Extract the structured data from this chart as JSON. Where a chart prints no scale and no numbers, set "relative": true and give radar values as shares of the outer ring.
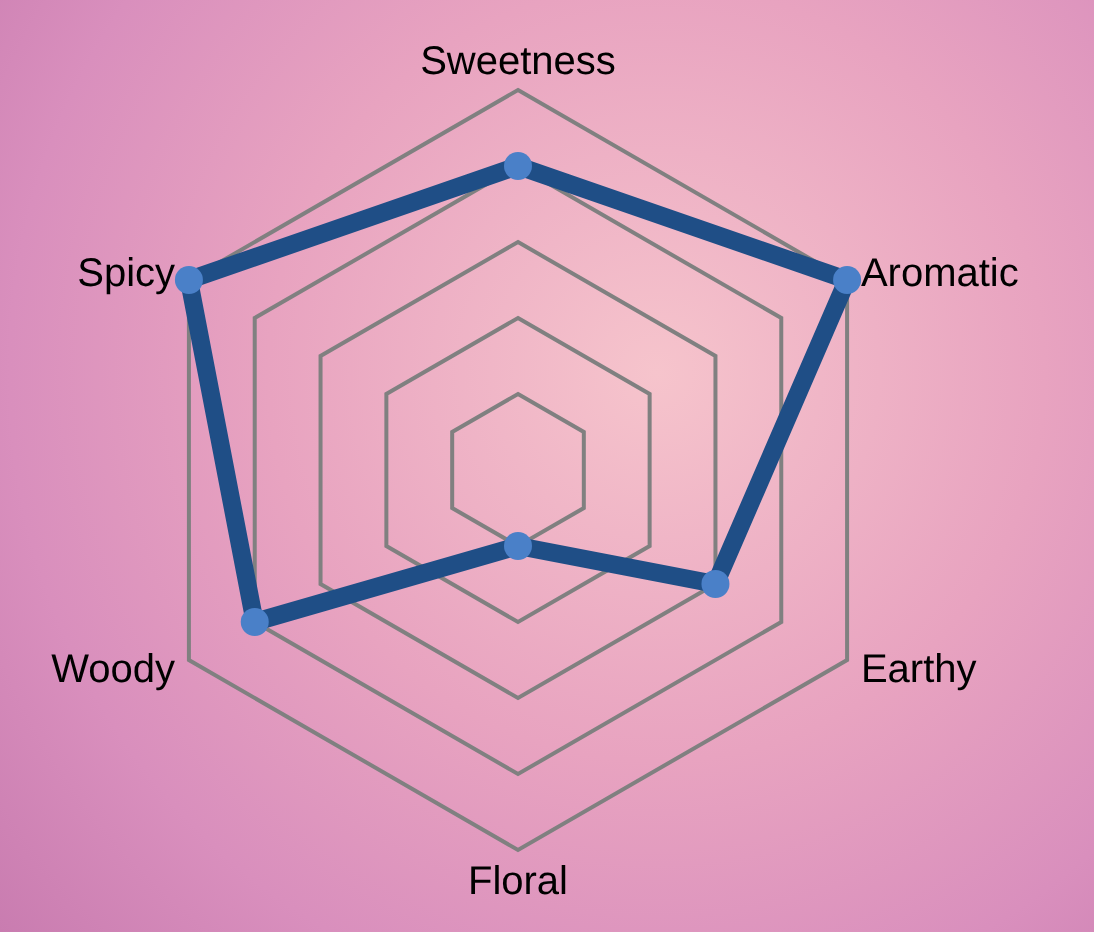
{
  "chart_data": {
    "type": "radar",
    "relative": true,
    "categories": [
      "Sweetness",
      "Aromatic",
      "Earthy",
      "Floral",
      "Woody",
      "Spicy"
    ],
    "marker": "circle",
    "line_style": "solid",
    "grid": true,
    "series": [
      {
        "color": "#1f4e86",
        "values": [
          0.8,
          1,
          0.6,
          0.2,
          0.8,
          1
        ]
      }
    ]
  }
}
